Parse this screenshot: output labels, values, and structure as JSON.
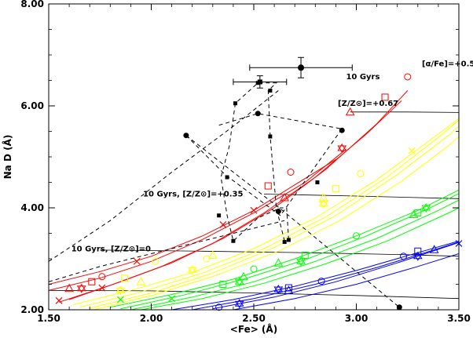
{
  "chart_data": {
    "type": "scatter",
    "xlabel": "<Fe> (Å)",
    "ylabel": "Na D (Å)",
    "xlim": [
      1.5,
      3.5
    ],
    "ylim": [
      2.0,
      8.0
    ],
    "xticks": [
      "1.50",
      "2.00",
      "2.50",
      "3.00",
      "3.50"
    ],
    "yticks": [
      "2.00",
      "4.00",
      "6.00",
      "8.00"
    ],
    "grid": false,
    "annotations": [
      {
        "text": "[α/Fe]=+0.5",
        "x": 3.32,
        "y": 6.78
      },
      {
        "text": "10 Gyrs",
        "x": 2.95,
        "y": 6.52
      },
      {
        "text": "[Z/Z⊙]=+0.67",
        "x": 2.91,
        "y": 6.0
      },
      {
        "text": "10 Gyrs, [Z/Z⊙]=+0.35",
        "x": 1.96,
        "y": 4.22
      },
      {
        "text": "10 Gyrs, [Z/Z⊙]=0",
        "x": 1.61,
        "y": 3.15
      }
    ],
    "colors": {
      "red": "#ff0000",
      "yellow": "#ffff00",
      "green": "#00ff00",
      "blue": "#0000ff",
      "black": "#000000"
    },
    "model_groups": [
      {
        "color": "red",
        "curves": [
          {
            "x": [
              1.5,
              1.75,
              2.0,
              2.25,
              2.5,
              2.7,
              2.9
            ],
            "y": [
              2.5,
              2.75,
              3.05,
              3.45,
              3.95,
              4.45,
              4.95
            ]
          },
          {
            "x": [
              1.5,
              1.75,
              2.0,
              2.25,
              2.5,
              2.75,
              2.95
            ],
            "y": [
              2.38,
              2.62,
              2.95,
              3.38,
              3.9,
              4.5,
              5.15
            ]
          },
          {
            "x": [
              1.55,
              1.8,
              2.05,
              2.3,
              2.55,
              2.8,
              3.05,
              3.22
            ],
            "y": [
              2.15,
              2.48,
              2.85,
              3.3,
              3.9,
              4.6,
              5.45,
              6.1
            ]
          },
          {
            "x": [
              1.6,
              1.85,
              2.1,
              2.35,
              2.6,
              2.85,
              3.1,
              3.25
            ],
            "y": [
              2.2,
              2.55,
              2.92,
              3.4,
              4.0,
              4.75,
              5.65,
              6.3
            ]
          }
        ],
        "markers": [
          {
            "shape": "circle",
            "x": 1.76,
            "y": 2.65
          },
          {
            "shape": "square",
            "x": 1.71,
            "y": 2.55
          },
          {
            "shape": "triangle",
            "x": 1.6,
            "y": 2.42
          },
          {
            "shape": "star",
            "x": 1.66,
            "y": 2.42
          },
          {
            "shape": "x",
            "x": 1.55,
            "y": 2.18
          },
          {
            "shape": "x",
            "x": 1.76,
            "y": 2.43
          },
          {
            "shape": "x",
            "x": 1.93,
            "y": 2.95
          },
          {
            "shape": "circle",
            "x": 2.68,
            "y": 4.7
          },
          {
            "shape": "square",
            "x": 2.57,
            "y": 4.43
          },
          {
            "shape": "triangle",
            "x": 2.65,
            "y": 4.2
          },
          {
            "shape": "star",
            "x": 2.93,
            "y": 5.17
          },
          {
            "shape": "x",
            "x": 2.5,
            "y": 3.95
          },
          {
            "shape": "x",
            "x": 2.35,
            "y": 3.67
          },
          {
            "shape": "circle",
            "x": 3.25,
            "y": 6.57
          },
          {
            "shape": "square",
            "x": 3.14,
            "y": 6.17
          },
          {
            "shape": "triangle",
            "x": 2.97,
            "y": 5.88
          }
        ]
      },
      {
        "color": "yellow",
        "curves": [
          {
            "x": [
              1.62,
              1.9,
              2.2,
              2.5,
              2.8,
              3.1,
              3.35,
              3.5
            ],
            "y": [
              2.1,
              2.38,
              2.73,
              3.2,
              3.8,
              4.55,
              5.3,
              5.75
            ]
          },
          {
            "x": [
              1.65,
              1.95,
              2.25,
              2.55,
              2.85,
              3.15,
              3.4,
              3.5
            ],
            "y": [
              2.05,
              2.35,
              2.72,
              3.2,
              3.82,
              4.6,
              5.38,
              5.72
            ]
          },
          {
            "x": [
              1.7,
              2.0,
              2.3,
              2.6,
              2.9,
              3.2,
              3.45,
              3.5
            ],
            "y": [
              2.03,
              2.33,
              2.72,
              3.22,
              3.85,
              4.65,
              5.42,
              5.6
            ]
          },
          {
            "x": [
              1.72,
              2.02,
              2.32,
              2.62,
              2.92,
              3.22,
              3.45,
              3.5
            ],
            "y": [
              2.0,
              2.3,
              2.68,
              3.15,
              3.75,
              4.52,
              5.22,
              5.4
            ]
          }
        ],
        "markers": [
          {
            "shape": "circle",
            "x": 2.02,
            "y": 2.95
          },
          {
            "shape": "square",
            "x": 1.87,
            "y": 2.62
          },
          {
            "shape": "triangle",
            "x": 1.95,
            "y": 2.55
          },
          {
            "shape": "star",
            "x": 1.85,
            "y": 2.38
          },
          {
            "shape": "circle",
            "x": 2.27,
            "y": 3.0
          },
          {
            "shape": "triangle",
            "x": 2.3,
            "y": 3.07
          },
          {
            "shape": "star",
            "x": 2.2,
            "y": 2.78
          },
          {
            "shape": "circle",
            "x": 3.02,
            "y": 4.67
          },
          {
            "shape": "square",
            "x": 2.9,
            "y": 4.38
          },
          {
            "shape": "triangle",
            "x": 2.84,
            "y": 4.2
          },
          {
            "shape": "star",
            "x": 2.84,
            "y": 4.08
          },
          {
            "shape": "x",
            "x": 3.27,
            "y": 5.12
          }
        ]
      },
      {
        "color": "green",
        "curves": [
          {
            "x": [
              1.8,
              2.1,
              2.4,
              2.7,
              3.0,
              3.3,
              3.5
            ],
            "y": [
              2.05,
              2.3,
              2.6,
              3.0,
              3.45,
              3.95,
              4.35
            ]
          },
          {
            "x": [
              1.85,
              2.15,
              2.45,
              2.75,
              3.05,
              3.35,
              3.5
            ],
            "y": [
              2.02,
              2.28,
              2.6,
              2.98,
              3.45,
              3.98,
              4.28
            ]
          },
          {
            "x": [
              1.9,
              2.2,
              2.5,
              2.8,
              3.1,
              3.4,
              3.5
            ],
            "y": [
              2.0,
              2.25,
              2.55,
              2.95,
              3.4,
              3.95,
              4.15
            ]
          },
          {
            "x": [
              1.95,
              2.25,
              2.55,
              2.85,
              3.15,
              3.45,
              3.5
            ],
            "y": [
              2.0,
              2.22,
              2.52,
              2.9,
              3.35,
              3.9,
              4.0
            ]
          }
        ],
        "markers": [
          {
            "shape": "circle",
            "x": 2.5,
            "y": 2.8
          },
          {
            "shape": "square",
            "x": 2.35,
            "y": 2.5
          },
          {
            "shape": "triangle",
            "x": 2.45,
            "y": 2.65
          },
          {
            "shape": "star",
            "x": 2.43,
            "y": 2.55
          },
          {
            "shape": "x",
            "x": 2.1,
            "y": 2.22
          },
          {
            "shape": "x",
            "x": 1.85,
            "y": 2.2
          },
          {
            "shape": "circle",
            "x": 3.0,
            "y": 3.45
          },
          {
            "shape": "square",
            "x": 2.75,
            "y": 3.07
          },
          {
            "shape": "triangle",
            "x": 2.62,
            "y": 2.92
          },
          {
            "shape": "star",
            "x": 2.73,
            "y": 2.95
          },
          {
            "shape": "square",
            "x": 3.3,
            "y": 3.9
          },
          {
            "shape": "triangle",
            "x": 3.28,
            "y": 3.87
          },
          {
            "shape": "star",
            "x": 3.34,
            "y": 4.0
          }
        ]
      },
      {
        "color": "blue",
        "curves": [
          {
            "x": [
              2.1,
              2.4,
              2.7,
              3.0,
              3.3,
              3.5
            ],
            "y": [
              2.0,
              2.2,
              2.46,
              2.77,
              3.12,
              3.35
            ]
          },
          {
            "x": [
              2.2,
              2.5,
              2.8,
              3.1,
              3.4,
              3.5
            ],
            "y": [
              2.0,
              2.22,
              2.5,
              2.83,
              3.2,
              3.33
            ]
          },
          {
            "x": [
              2.3,
              2.6,
              2.9,
              3.2,
              3.5
            ],
            "y": [
              2.02,
              2.25,
              2.55,
              2.92,
              3.32
            ]
          },
          {
            "x": [
              2.4,
              2.7,
              3.0,
              3.3,
              3.5
            ],
            "y": [
              2.0,
              2.22,
              2.5,
              2.85,
              3.1
            ]
          }
        ],
        "markers": [
          {
            "shape": "circle",
            "x": 2.83,
            "y": 2.56
          },
          {
            "shape": "square",
            "x": 2.67,
            "y": 2.43
          },
          {
            "shape": "triangle",
            "x": 2.67,
            "y": 2.38
          },
          {
            "shape": "star",
            "x": 2.62,
            "y": 2.4
          },
          {
            "shape": "circle",
            "x": 2.33,
            "y": 2.05
          },
          {
            "shape": "star",
            "x": 2.43,
            "y": 2.12
          },
          {
            "shape": "circle",
            "x": 3.23,
            "y": 3.05
          },
          {
            "shape": "square",
            "x": 3.3,
            "y": 3.15
          },
          {
            "shape": "triangle",
            "x": 3.38,
            "y": 3.18
          },
          {
            "shape": "star",
            "x": 3.3,
            "y": 3.05
          },
          {
            "shape": "x",
            "x": 3.5,
            "y": 3.3
          }
        ]
      }
    ],
    "black_lines": [
      {
        "x": [
          1.5,
          2.0,
          2.5,
          3.0,
          3.5
        ],
        "y": [
          2.38,
          2.37,
          2.33,
          2.28,
          2.22
        ]
      },
      {
        "x": [
          1.75,
          2.25,
          2.75,
          3.25,
          3.5
        ],
        "y": [
          3.17,
          3.15,
          3.12,
          3.08,
          3.05
        ]
      },
      {
        "x": [
          2.55,
          3.0,
          3.5
        ],
        "y": [
          4.27,
          4.23,
          4.18
        ]
      },
      {
        "x": [
          2.97,
          3.25,
          3.5
        ],
        "y": [
          5.88,
          5.88,
          5.87
        ]
      }
    ],
    "dashed_lines": [
      {
        "x": [
          1.5,
          1.8,
          2.1,
          2.4,
          2.62
        ],
        "y": [
          2.95,
          3.75,
          4.7,
          5.6,
          6.3
        ]
      },
      {
        "x": [
          1.5,
          1.75,
          2.0,
          2.25,
          2.5,
          2.65
        ],
        "y": [
          2.55,
          2.85,
          3.1,
          3.35,
          3.6,
          3.75
        ]
      },
      {
        "x": [
          2.17,
          2.36,
          2.63,
          2.93
        ],
        "y": [
          5.42,
          4.65,
          3.85,
          5.55
        ]
      },
      {
        "x": [
          2.17,
          2.64,
          3.0,
          3.21
        ],
        "y": [
          5.42,
          3.95,
          2.75,
          2.05
        ]
      },
      {
        "x": [
          2.33,
          2.52,
          2.93
        ],
        "y": [
          5.62,
          5.85,
          5.55
        ]
      }
    ],
    "observed_path": {
      "x": [
        2.65,
        2.61,
        2.58,
        2.57,
        2.61,
        2.52,
        2.41,
        2.38,
        2.34,
        2.37,
        2.4,
        2.52,
        2.63,
        2.66,
        2.67
      ],
      "y": [
        3.35,
        4.0,
        5.4,
        6.3,
        6.45,
        6.45,
        6.05,
        5.2,
        4.6,
        3.85,
        3.35,
        3.8,
        4.0,
        4.0,
        3.37
      ]
    },
    "squares": [
      {
        "x": 2.41,
        "y": 6.05
      },
      {
        "x": 2.52,
        "y": 6.45
      },
      {
        "x": 2.58,
        "y": 6.3
      },
      {
        "x": 2.58,
        "y": 5.4
      },
      {
        "x": 2.37,
        "y": 4.6
      },
      {
        "x": 2.33,
        "y": 3.85
      },
      {
        "x": 2.4,
        "y": 3.35
      },
      {
        "x": 2.81,
        "y": 4.5
      },
      {
        "x": 2.67,
        "y": 3.37
      },
      {
        "x": 2.65,
        "y": 3.33
      }
    ],
    "dots": [
      {
        "x": 2.17,
        "y": 5.42
      },
      {
        "x": 2.52,
        "y": 5.85
      },
      {
        "x": 2.93,
        "y": 5.52
      },
      {
        "x": 2.62,
        "y": 3.93
      },
      {
        "x": 3.21,
        "y": 2.05
      }
    ],
    "error_points": [
      {
        "x": 2.73,
        "y": 6.75,
        "xerr": 0.25,
        "yerr": 0.2,
        "marker": "dot"
      },
      {
        "x": 2.53,
        "y": 6.47,
        "xerr": 0.13,
        "yerr": 0.12,
        "marker": "square"
      }
    ]
  }
}
